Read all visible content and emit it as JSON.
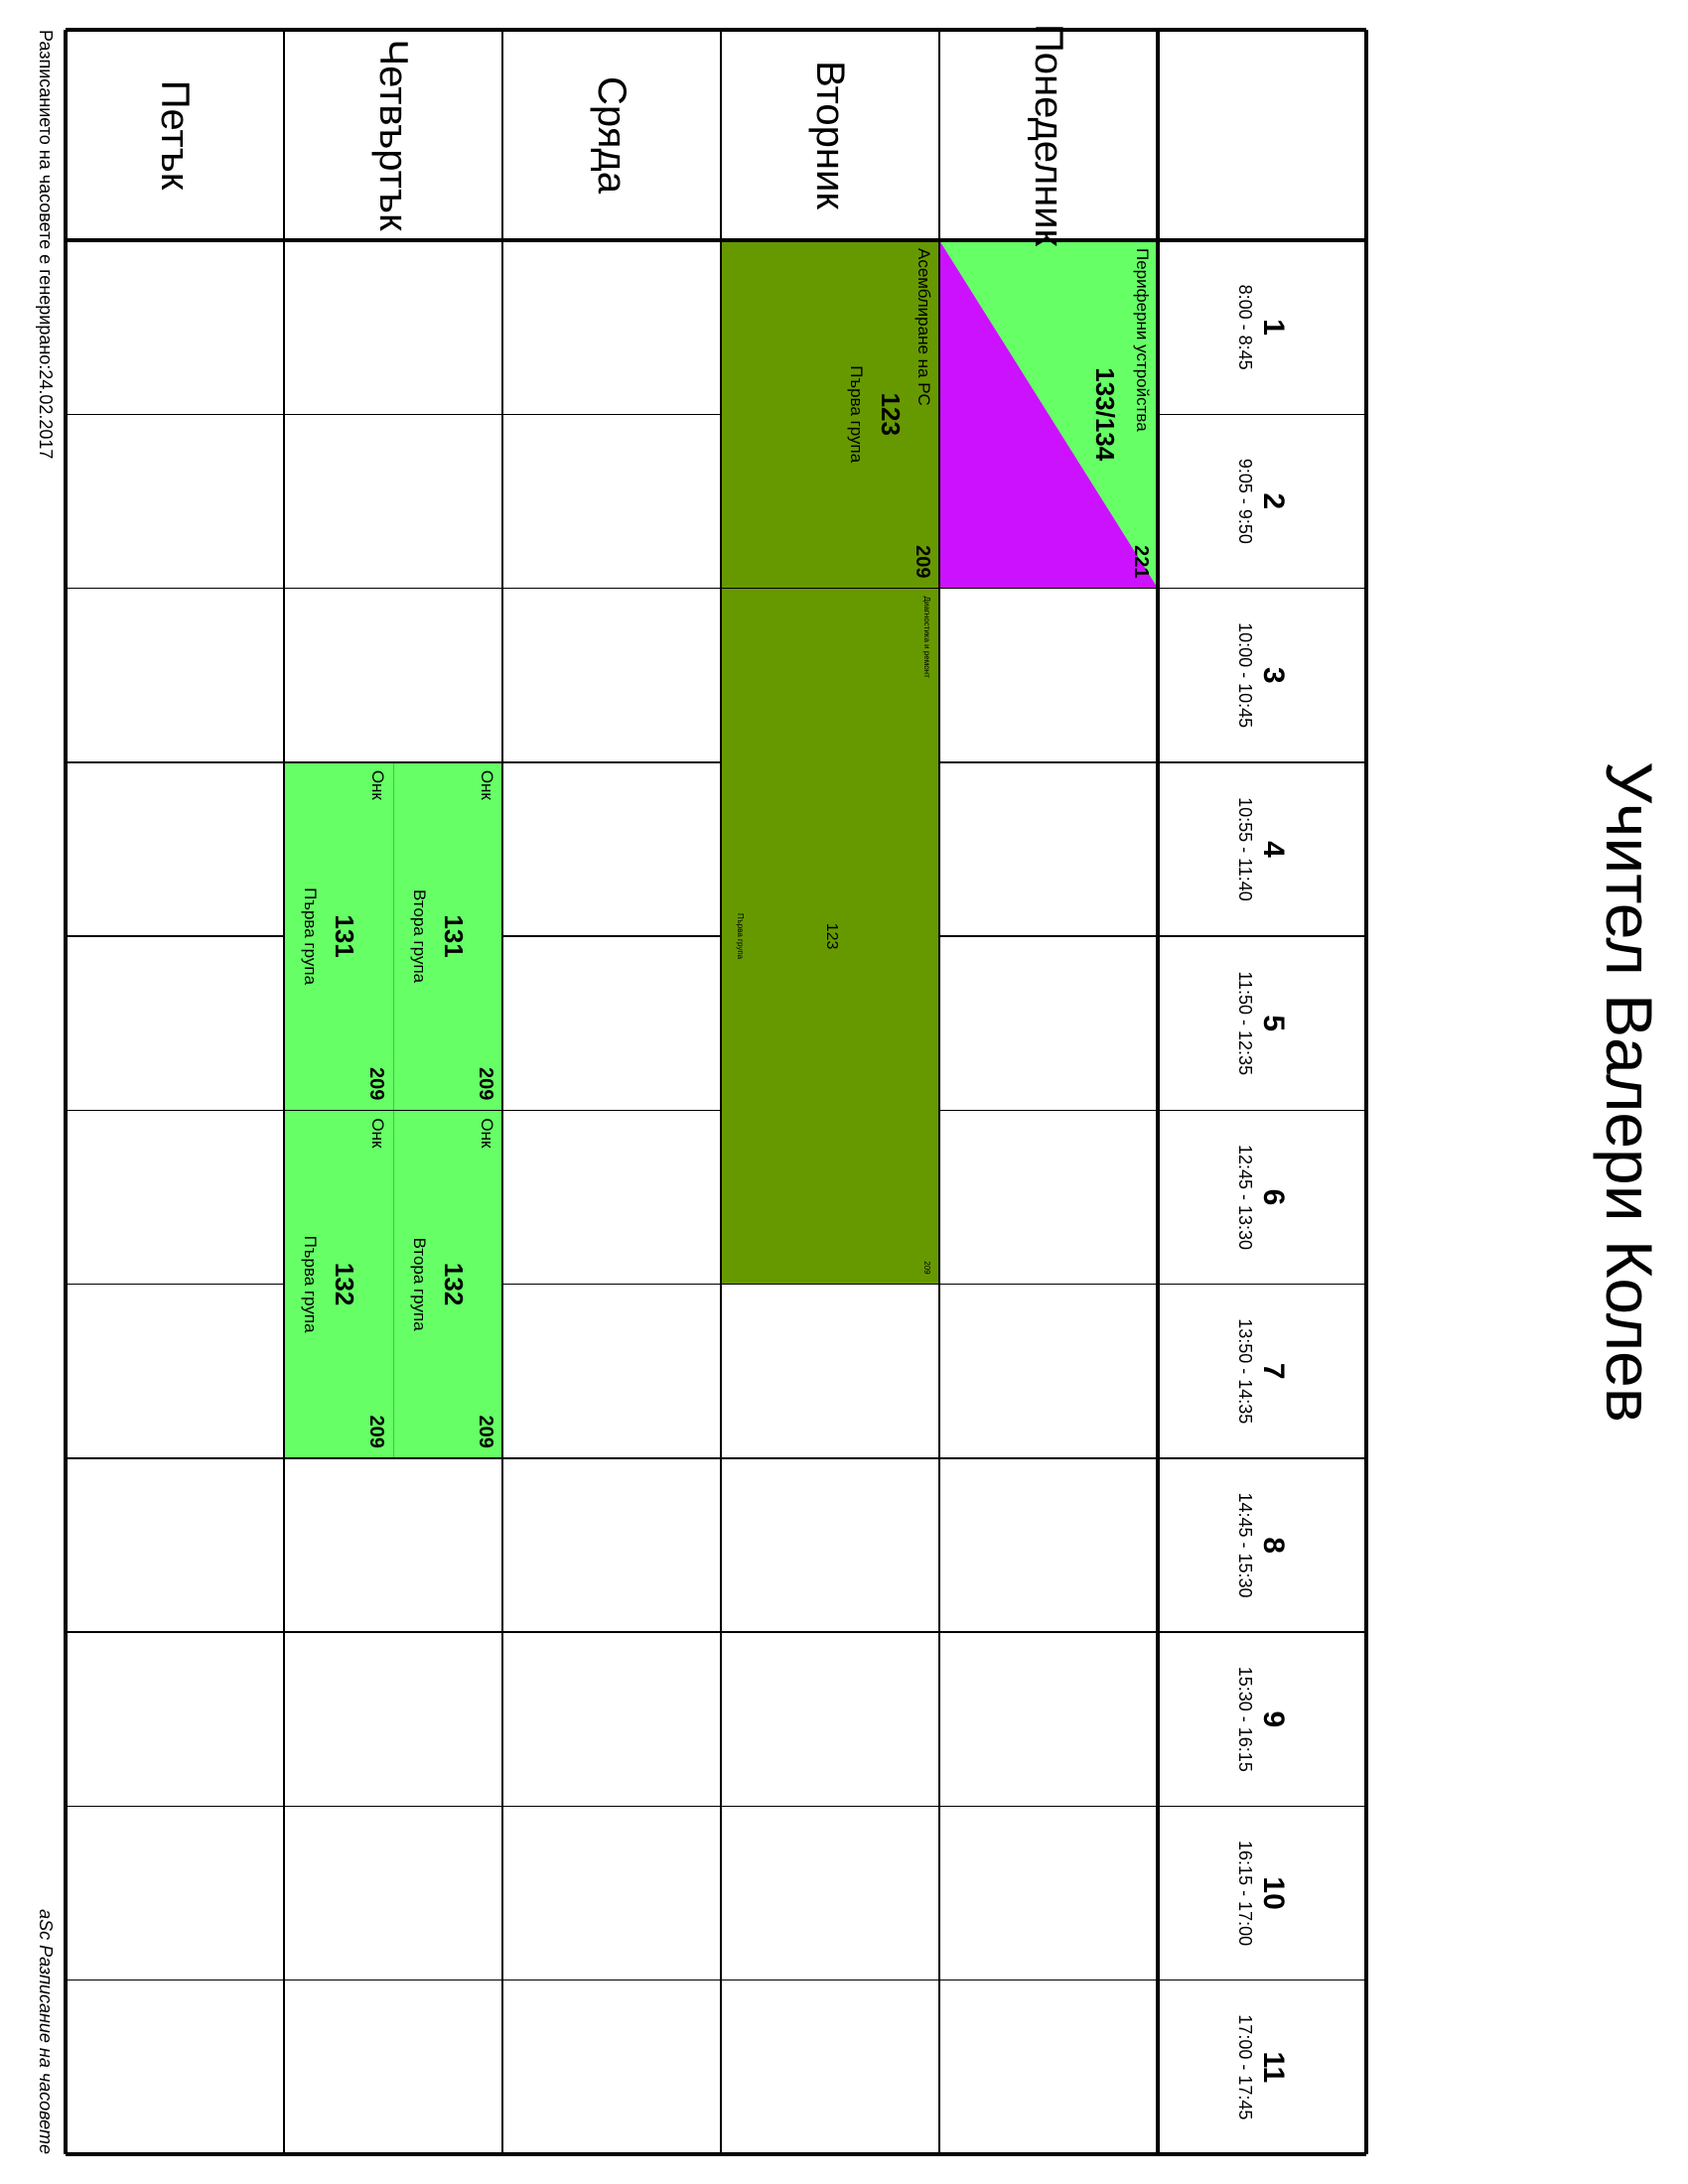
{
  "title": "Учител Валери Колев",
  "days": [
    "Понеделник",
    "Вторник",
    "Сряда",
    "Четвъртък",
    "Петък"
  ],
  "periods": [
    {
      "num": "1",
      "time": "8:00 - 8:45"
    },
    {
      "num": "2",
      "time": "9:05 - 9:50"
    },
    {
      "num": "3",
      "time": "10:00 - 10:45"
    },
    {
      "num": "4",
      "time": "10:55 - 11:40"
    },
    {
      "num": "5",
      "time": "11:50 - 12:35"
    },
    {
      "num": "6",
      "time": "12:45 - 13:30"
    },
    {
      "num": "7",
      "time": "13:50 - 14:35"
    },
    {
      "num": "8",
      "time": "14:45 - 15:30"
    },
    {
      "num": "9",
      "time": "15:30 - 16:15"
    },
    {
      "num": "10",
      "time": "16:15 - 17:00"
    },
    {
      "num": "11",
      "time": "17:00 - 17:45"
    }
  ],
  "lessons": {
    "monday": {
      "subject": "Периферни устройства",
      "room": "221",
      "class": "133/134",
      "colors": [
        "#66ff66",
        "#cc11ff"
      ]
    },
    "tuesday_main": {
      "subject": "Асемблиране на PC",
      "room": "209",
      "class": "123",
      "group": "Първа група",
      "color": "#669900"
    },
    "tuesday_block": {
      "subject": "Диагностика и ремонт",
      "room": "209",
      "class": "123",
      "group": "Първа група",
      "color": "#669900"
    },
    "thursday": [
      {
        "subject": "Онк",
        "room": "209",
        "class": "131",
        "group": "Втора група"
      },
      {
        "subject": "Онк",
        "room": "209",
        "class": "131",
        "group": "Първа група"
      },
      {
        "subject": "Онк",
        "room": "209",
        "class": "132",
        "group": "Втора група"
      },
      {
        "subject": "Онк",
        "room": "209",
        "class": "132",
        "group": "Първа група"
      }
    ],
    "thursday_color": "#66ff66"
  },
  "footer": {
    "left": "Разписанието на часовете е генерирано:24.02.2017",
    "right": "aSc Разписание на часовете"
  }
}
